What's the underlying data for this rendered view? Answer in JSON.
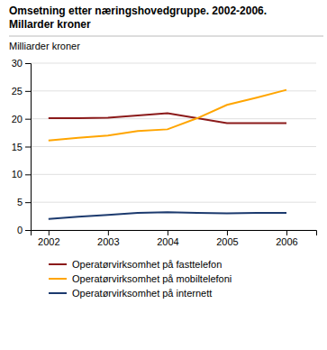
{
  "chart_data": {
    "type": "line",
    "title": "Omsetning etter næringshovedgruppe. 2002-2006.",
    "subtitle": "Millarder kroner",
    "ylabel": "Milliarder kroner",
    "x": [
      2002,
      2002.5,
      2003,
      2003.5,
      2004,
      2004.5,
      2005,
      2005.5,
      2006
    ],
    "series": [
      {
        "name": "Operatørvirksomhet på fasttelefon",
        "color": "#8B1A1A",
        "values": [
          20.1,
          20.1,
          20.2,
          20.6,
          21.0,
          20.1,
          19.2,
          19.2,
          19.2
        ]
      },
      {
        "name": "Operatørvirksomhet på mobiltelefoni",
        "color": "#FFA500",
        "values": [
          16.1,
          16.6,
          17.0,
          17.8,
          18.1,
          20.1,
          22.5,
          23.8,
          25.2
        ]
      },
      {
        "name": "Operatørvirksomhet på internett",
        "color": "#1C3A6E",
        "values": [
          2.0,
          2.4,
          2.7,
          3.1,
          3.2,
          3.1,
          3.0,
          3.1,
          3.1
        ]
      }
    ],
    "xlim": [
      2001.7,
      2006.5
    ],
    "xticks": [
      2002,
      2003,
      2004,
      2005,
      2006
    ],
    "ylim": [
      0,
      30
    ],
    "yticks": [
      0,
      5,
      10,
      15,
      20,
      25,
      30
    ],
    "grid": true,
    "legend": "bottom"
  }
}
